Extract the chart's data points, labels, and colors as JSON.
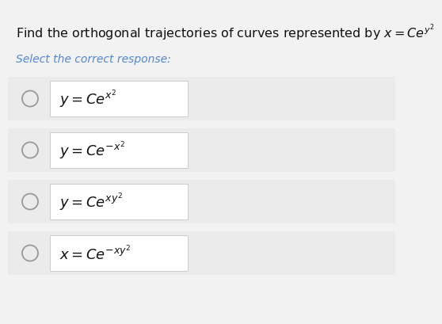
{
  "background_color": "#f2f2f2",
  "question_text": "Find the orthogonal trajectories of curves represented by $x = Ce^{y^2}$",
  "select_text": "Select the correct response:",
  "options": [
    "$y = Ce^{x^2}$",
    "$y = Ce^{-x^2}$",
    "$y = Ce^{xy^2}$",
    "$x = Ce^{-xy^2}$"
  ],
  "option_box_color": "#ffffff",
  "option_box_edge_color": "#cccccc",
  "row_bg_color": "#ebebeb",
  "circle_edge_color": "#999999",
  "question_fontsize": 11.5,
  "select_fontsize": 10,
  "option_fontsize": 13,
  "text_color": "#111111",
  "select_color": "#5588cc"
}
